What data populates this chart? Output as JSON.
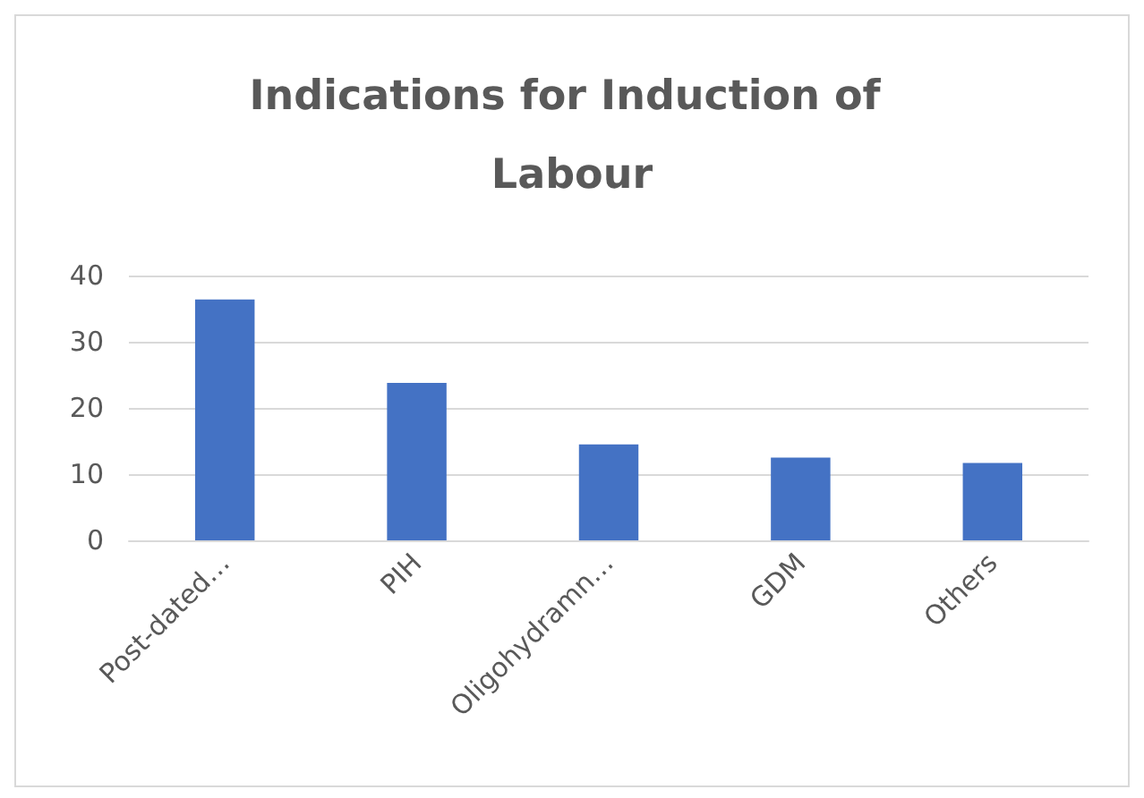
{
  "chart_data": {
    "type": "bar",
    "title": "Indications for Induction of Labour",
    "categories": [
      "Post-dated…",
      "PIH",
      "Oligohydramn…",
      "GDM",
      "Others"
    ],
    "values": [
      36.4,
      23.8,
      14.5,
      12.5,
      11.7
    ],
    "color": "#4472c4",
    "ylim": [
      0,
      40
    ],
    "yticks": [
      0,
      10,
      20,
      30,
      40
    ],
    "grid": "y"
  }
}
